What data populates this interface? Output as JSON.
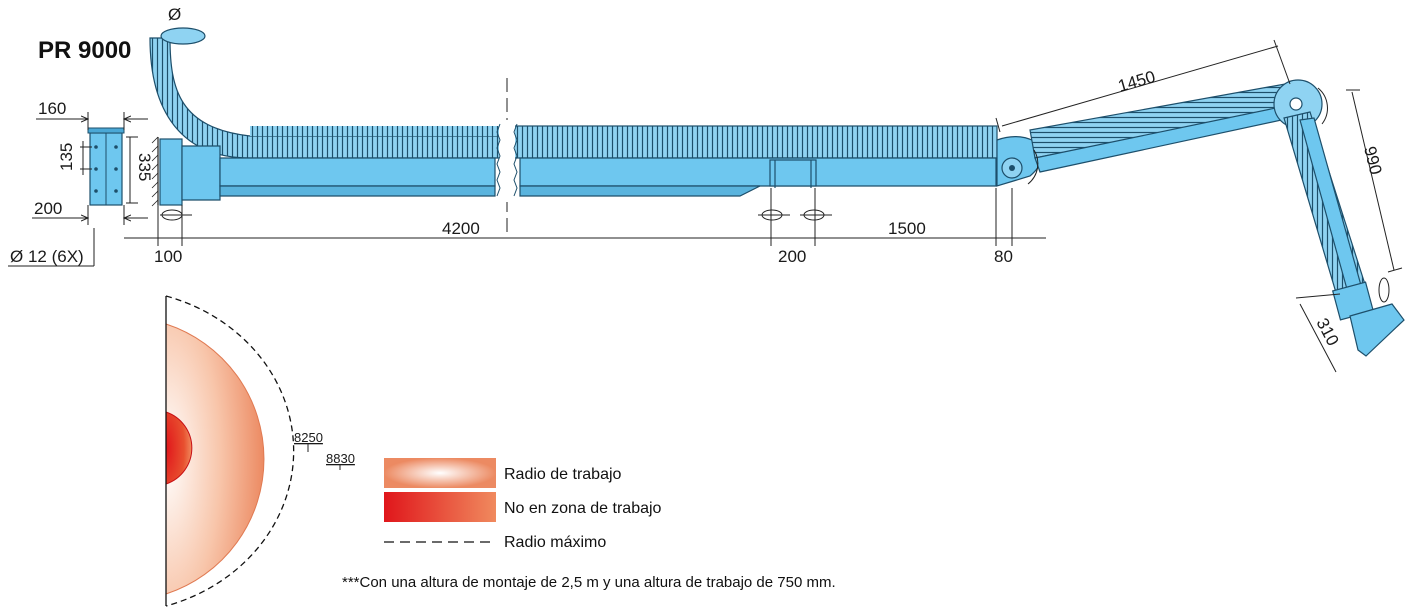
{
  "title": "PR 9000",
  "dimensions": {
    "diameter_symbol": "Ø",
    "bracket_width": "160",
    "bracket_hole_spacing": "135",
    "bracket_height": "335",
    "bracket_base": "200",
    "bolt_holes": "Ø 12 (6X)",
    "offset_100": "100",
    "boom_length": "4200",
    "pivot_gap": "200",
    "segment_1500": "1500",
    "offset_80": "80",
    "arm_1450": "1450",
    "arm_990": "990",
    "hood_310": "310",
    "radius_working": "8250",
    "radius_max": "8830"
  },
  "legend": {
    "working_radius": "Radio de trabajo",
    "no_working_zone": "No en zona de trabajo",
    "max_radius": "Radio máximo"
  },
  "note": "***Con una altura de montaje de 2,5 m y una altura de trabajo de 750 mm.",
  "colors": {
    "arm_blue": "#6ec7ef",
    "outline": "#1d4f6b",
    "working_zone_outer": "#ec8a62",
    "no_zone_red": "#e0161b"
  }
}
